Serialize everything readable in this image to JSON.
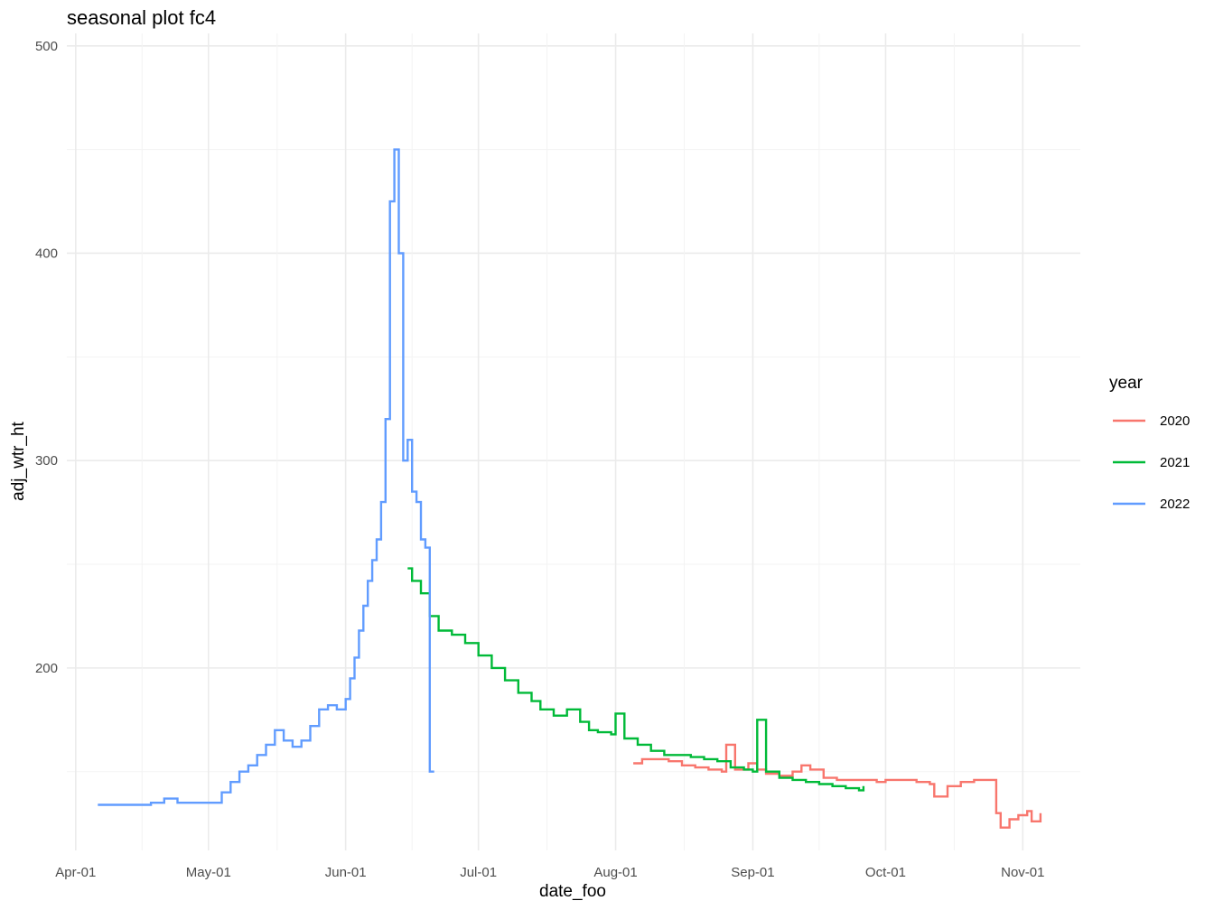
{
  "chart_data": {
    "type": "line",
    "title": "seasonal plot fc4",
    "xlabel": "date_foo",
    "ylabel": "adj_wtr_ht",
    "x_tick_labels": [
      "Apr-01",
      "May-01",
      "Jun-01",
      "Jul-01",
      "Aug-01",
      "Sep-01",
      "Oct-01",
      "Nov-01"
    ],
    "x_tick_values": [
      "04-01",
      "05-01",
      "06-01",
      "07-01",
      "08-01",
      "09-01",
      "10-01",
      "11-01"
    ],
    "y_tick_values": [
      200,
      300,
      400,
      500
    ],
    "y_tick_labels": [
      "200",
      "300",
      "400",
      "500"
    ],
    "xlim": [
      "03-30",
      "11-14"
    ],
    "ylim": [
      112,
      506
    ],
    "grid": true,
    "legend": {
      "title": "year",
      "position": "right"
    },
    "series": [
      {
        "name": "2020",
        "color": "#F8766D",
        "x": [
          "08-05",
          "08-07",
          "08-10",
          "08-13",
          "08-16",
          "08-19",
          "08-22",
          "08-25",
          "08-26",
          "08-28",
          "08-31",
          "09-02",
          "09-04",
          "09-07",
          "09-10",
          "09-12",
          "09-14",
          "09-17",
          "09-20",
          "09-23",
          "09-26",
          "09-29",
          "10-01",
          "10-05",
          "10-08",
          "10-11",
          "10-12",
          "10-15",
          "10-18",
          "10-21",
          "10-24",
          "10-25",
          "10-26",
          "10-27",
          "10-29",
          "10-31",
          "11-02",
          "11-03",
          "11-05"
        ],
        "y": [
          154,
          156,
          156,
          155,
          153,
          152,
          151,
          150,
          163,
          151,
          154,
          151,
          149,
          148,
          150,
          153,
          151,
          147,
          146,
          146,
          146,
          145,
          146,
          146,
          145,
          144,
          138,
          143,
          145,
          146,
          146,
          146,
          130,
          123,
          127,
          129,
          131,
          126,
          130
        ]
      },
      {
        "name": "2021",
        "color": "#00BA38",
        "x": [
          "06-15",
          "06-16",
          "06-18",
          "06-20",
          "06-22",
          "06-25",
          "06-28",
          "07-01",
          "07-04",
          "07-07",
          "07-10",
          "07-13",
          "07-15",
          "07-18",
          "07-21",
          "07-24",
          "07-26",
          "07-28",
          "07-31",
          "08-01",
          "08-03",
          "08-06",
          "08-09",
          "08-12",
          "08-15",
          "08-18",
          "08-21",
          "08-24",
          "08-27",
          "08-30",
          "09-01",
          "09-02",
          "09-04",
          "09-07",
          "09-10",
          "09-13",
          "09-16",
          "09-19",
          "09-22",
          "09-25",
          "09-26"
        ],
        "y": [
          248,
          242,
          236,
          225,
          218,
          216,
          212,
          206,
          200,
          194,
          188,
          184,
          180,
          177,
          180,
          174,
          170,
          169,
          168,
          178,
          166,
          163,
          160,
          158,
          158,
          157,
          156,
          155,
          152,
          151,
          150,
          175,
          150,
          147,
          146,
          145,
          144,
          143,
          142,
          141,
          143
        ]
      },
      {
        "name": "2022",
        "color": "#619CFF",
        "x": [
          "04-06",
          "04-10",
          "04-14",
          "04-18",
          "04-21",
          "04-24",
          "04-27",
          "04-30",
          "05-04",
          "05-06",
          "05-08",
          "05-10",
          "05-12",
          "05-14",
          "05-16",
          "05-18",
          "05-20",
          "05-22",
          "05-24",
          "05-26",
          "05-28",
          "05-30",
          "06-01",
          "06-02",
          "06-03",
          "06-04",
          "06-05",
          "06-06",
          "06-07",
          "06-08",
          "06-09",
          "06-10",
          "06-11",
          "06-12",
          "06-13",
          "06-14",
          "06-15",
          "06-16",
          "06-17",
          "06-18",
          "06-19",
          "06-20",
          "06-21"
        ],
        "y": [
          134,
          134,
          134,
          135,
          137,
          135,
          135,
          135,
          140,
          145,
          150,
          153,
          158,
          163,
          170,
          165,
          162,
          165,
          172,
          180,
          182,
          180,
          185,
          195,
          205,
          218,
          230,
          242,
          252,
          262,
          280,
          320,
          425,
          450,
          400,
          300,
          310,
          285,
          280,
          262,
          258,
          150,
          150
        ]
      }
    ]
  }
}
